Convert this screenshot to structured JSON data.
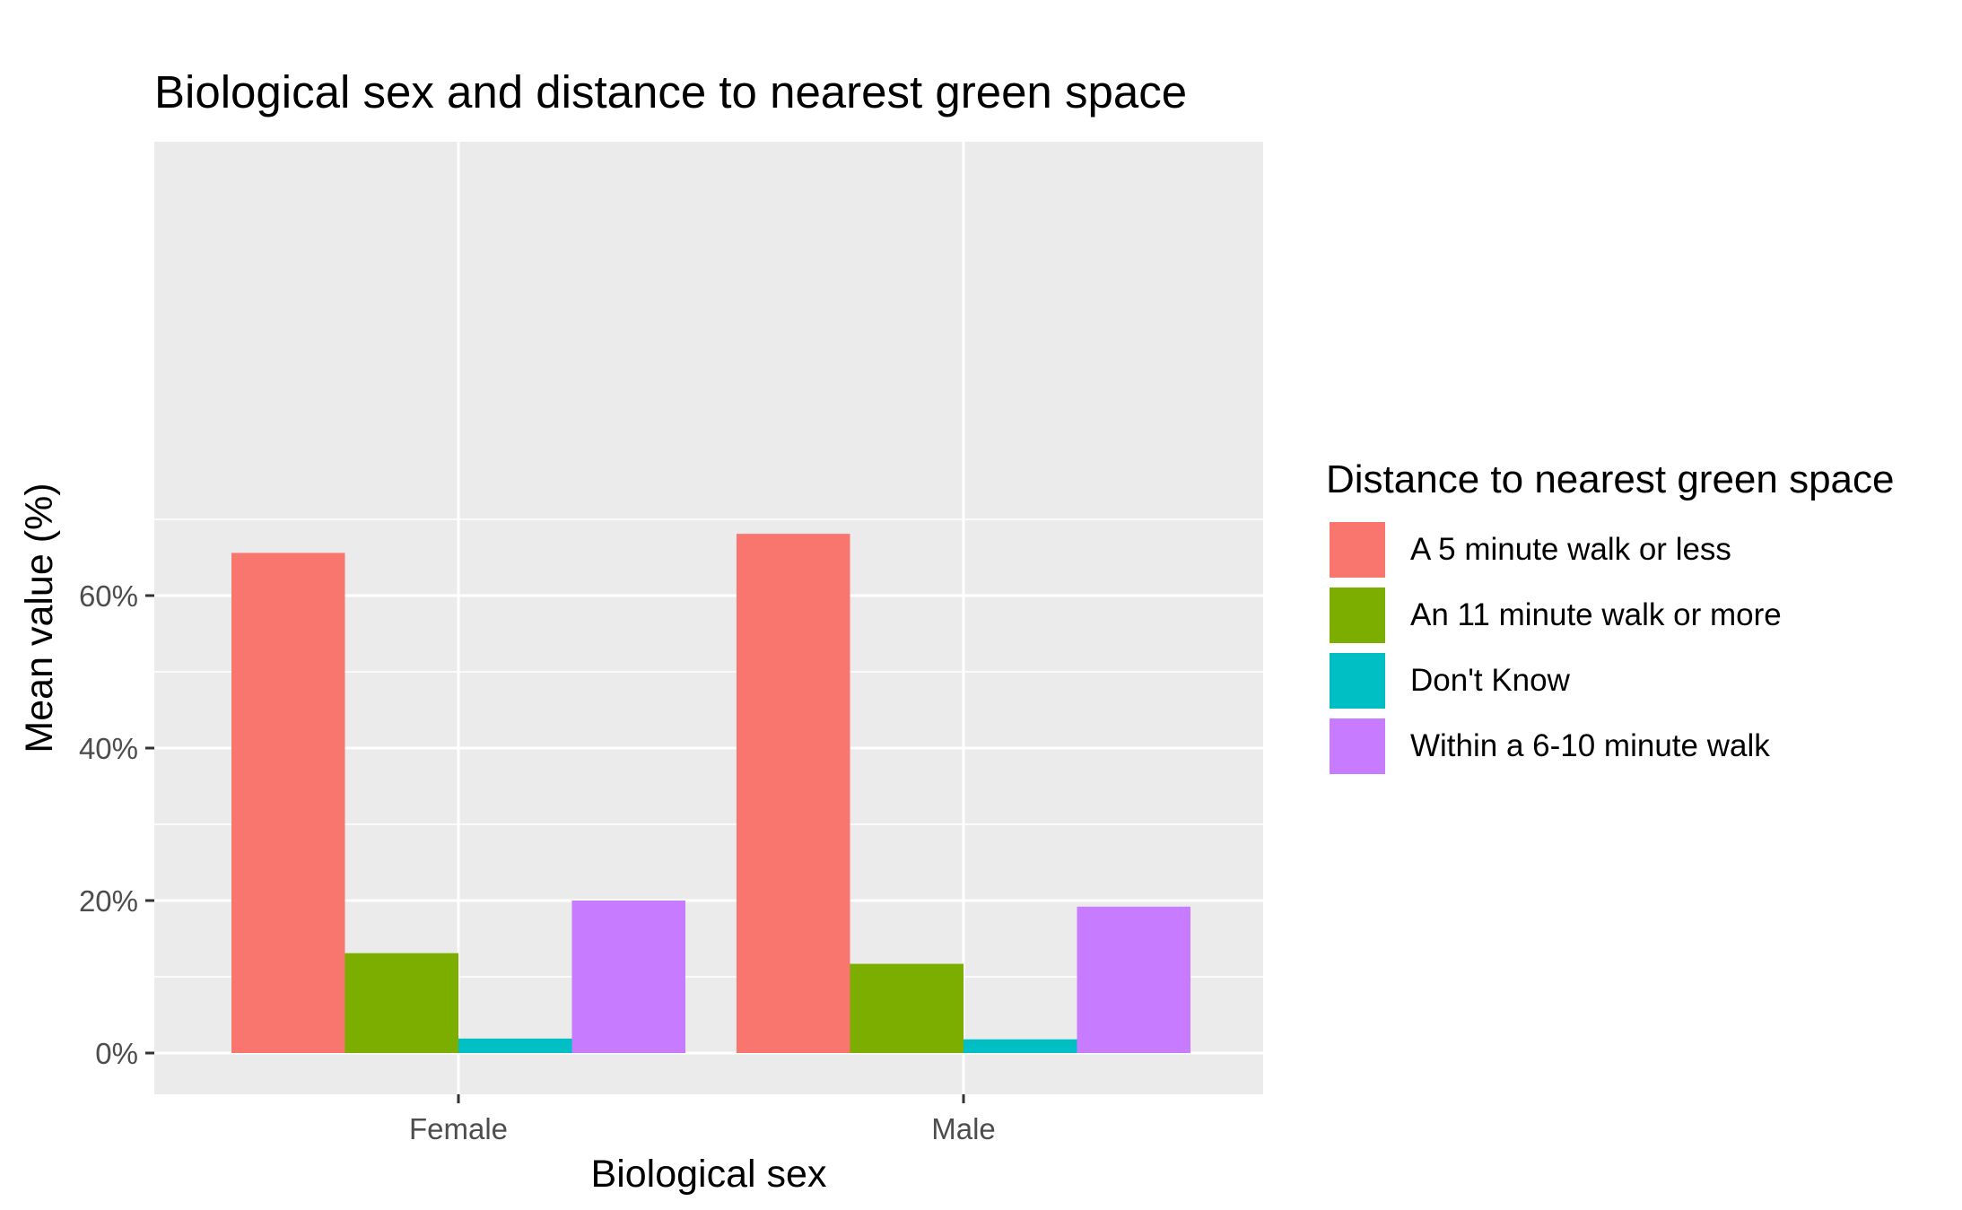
{
  "chart_data": {
    "type": "bar",
    "title": "Biological sex and distance to nearest green space",
    "xlabel": "Biological sex",
    "ylabel": "Mean value (%)",
    "categories": [
      "Female",
      "Male"
    ],
    "ylim": [
      0,
      70
    ],
    "yticks": [
      0,
      20,
      40,
      60
    ],
    "ytick_labels": [
      "0%",
      "20%",
      "40%",
      "60%"
    ],
    "grid": true,
    "background": "#EBEBEB",
    "legend_title": "Distance to nearest green space",
    "legend_position": "right",
    "series": [
      {
        "name": "A 5 minute walk or less",
        "color": "#F8766D",
        "values": [
          65.6,
          68.1
        ]
      },
      {
        "name": "An 11 minute walk or more",
        "color": "#7CAE00",
        "values": [
          13.1,
          11.7
        ]
      },
      {
        "name": "Don't Know",
        "color": "#00BFC4",
        "values": [
          1.9,
          1.8
        ]
      },
      {
        "name": "Within a 6-10 minute walk",
        "color": "#C77CFF",
        "values": [
          20.0,
          19.2
        ]
      }
    ]
  }
}
